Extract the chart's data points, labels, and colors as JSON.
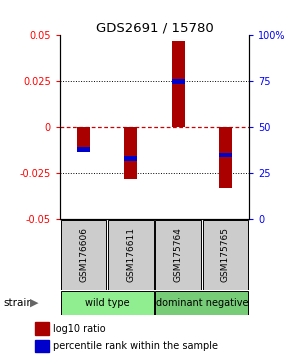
{
  "title": "GDS2691 / 15780",
  "samples": [
    "GSM176606",
    "GSM176611",
    "GSM175764",
    "GSM175765"
  ],
  "log10_ratios": [
    -0.012,
    -0.028,
    0.047,
    -0.033
  ],
  "percentile_ranks": [
    0.38,
    0.33,
    0.75,
    0.35
  ],
  "groups": [
    {
      "name": "wild type",
      "samples": [
        0,
        1
      ],
      "color": "#90ee90"
    },
    {
      "name": "dominant negative",
      "samples": [
        2,
        3
      ],
      "color": "#77cc77"
    }
  ],
  "group_label": "strain",
  "ylim": [
    -0.05,
    0.05
  ],
  "yticks_left": [
    -0.05,
    -0.025,
    0,
    0.025,
    0.05
  ],
  "yticks_right": [
    0,
    25,
    50,
    75,
    100
  ],
  "bar_color": "#aa0000",
  "percentile_color": "#0000cc",
  "hline_zero_color": "#cc0000",
  "background_color": "#ffffff"
}
